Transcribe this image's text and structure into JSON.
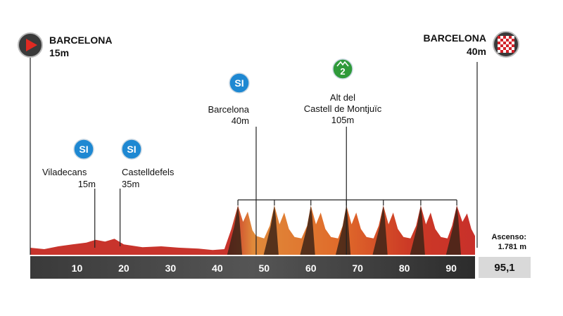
{
  "chart_data": {
    "type": "area",
    "xlim": [
      0,
      95.1
    ],
    "x_ticks": [
      10,
      20,
      30,
      40,
      50,
      60,
      70,
      80,
      90
    ],
    "distance_total": "95,1",
    "ascent": {
      "label": "Ascenso:",
      "value": "1.781 m"
    },
    "start": {
      "name": "BARCELONA",
      "altitude": "15m"
    },
    "finish": {
      "name": "BARCELONA",
      "altitude": "40m"
    },
    "waypoints": [
      {
        "badge": "SI",
        "name": "Viladecans",
        "altitude": "15m",
        "km": 13.8
      },
      {
        "badge": "SI",
        "name": "Castelldefels",
        "altitude": "35m",
        "km": 19.2
      },
      {
        "badge": "SI",
        "name": "Barcelona",
        "altitude": "40m",
        "km": 48.3
      },
      {
        "badge": "2",
        "name_lines": [
          "Alt del",
          "Castell de Montjuïc"
        ],
        "altitude": "105m",
        "km": 67.6
      }
    ],
    "circuit_laps_km": [
      44.4,
      52.2,
      60.0,
      67.6,
      75.5,
      83.5,
      91.2
    ],
    "profile": [
      [
        0,
        15
      ],
      [
        3,
        12
      ],
      [
        6,
        18
      ],
      [
        9,
        22
      ],
      [
        12,
        26
      ],
      [
        14,
        32
      ],
      [
        16,
        28
      ],
      [
        18,
        34
      ],
      [
        20,
        22
      ],
      [
        24,
        16
      ],
      [
        28,
        18
      ],
      [
        32,
        15
      ],
      [
        36,
        13
      ],
      [
        39,
        10
      ],
      [
        41.5,
        12
      ],
      [
        43,
        55
      ],
      [
        44.4,
        105
      ],
      [
        45.5,
        70
      ],
      [
        46.5,
        92
      ],
      [
        47.5,
        52
      ],
      [
        48.3,
        40
      ],
      [
        50,
        35
      ],
      [
        51.2,
        62
      ],
      [
        52.2,
        105
      ],
      [
        53.3,
        65
      ],
      [
        54.3,
        90
      ],
      [
        55.3,
        55
      ],
      [
        56.5,
        38
      ],
      [
        58,
        35
      ],
      [
        59.2,
        62
      ],
      [
        60.0,
        105
      ],
      [
        61.1,
        65
      ],
      [
        62.1,
        90
      ],
      [
        63.1,
        55
      ],
      [
        64.3,
        38
      ],
      [
        65.8,
        35
      ],
      [
        66.8,
        62
      ],
      [
        67.6,
        105
      ],
      [
        68.7,
        65
      ],
      [
        69.7,
        90
      ],
      [
        70.7,
        55
      ],
      [
        71.9,
        38
      ],
      [
        73.4,
        35
      ],
      [
        74.5,
        62
      ],
      [
        75.5,
        105
      ],
      [
        76.6,
        65
      ],
      [
        77.6,
        90
      ],
      [
        78.6,
        55
      ],
      [
        79.8,
        38
      ],
      [
        81.3,
        35
      ],
      [
        82.5,
        62
      ],
      [
        83.5,
        105
      ],
      [
        84.6,
        65
      ],
      [
        85.6,
        90
      ],
      [
        86.6,
        55
      ],
      [
        87.8,
        38
      ],
      [
        89.2,
        35
      ],
      [
        90.2,
        62
      ],
      [
        91.2,
        105
      ],
      [
        92.4,
        70
      ],
      [
        93.4,
        88
      ],
      [
        94.3,
        55
      ],
      [
        95.1,
        40
      ]
    ],
    "colors": {
      "low": "#c8342c",
      "mid": "#e0742c",
      "dark": "#3d2418",
      "axis": "#3a3a3a"
    }
  }
}
